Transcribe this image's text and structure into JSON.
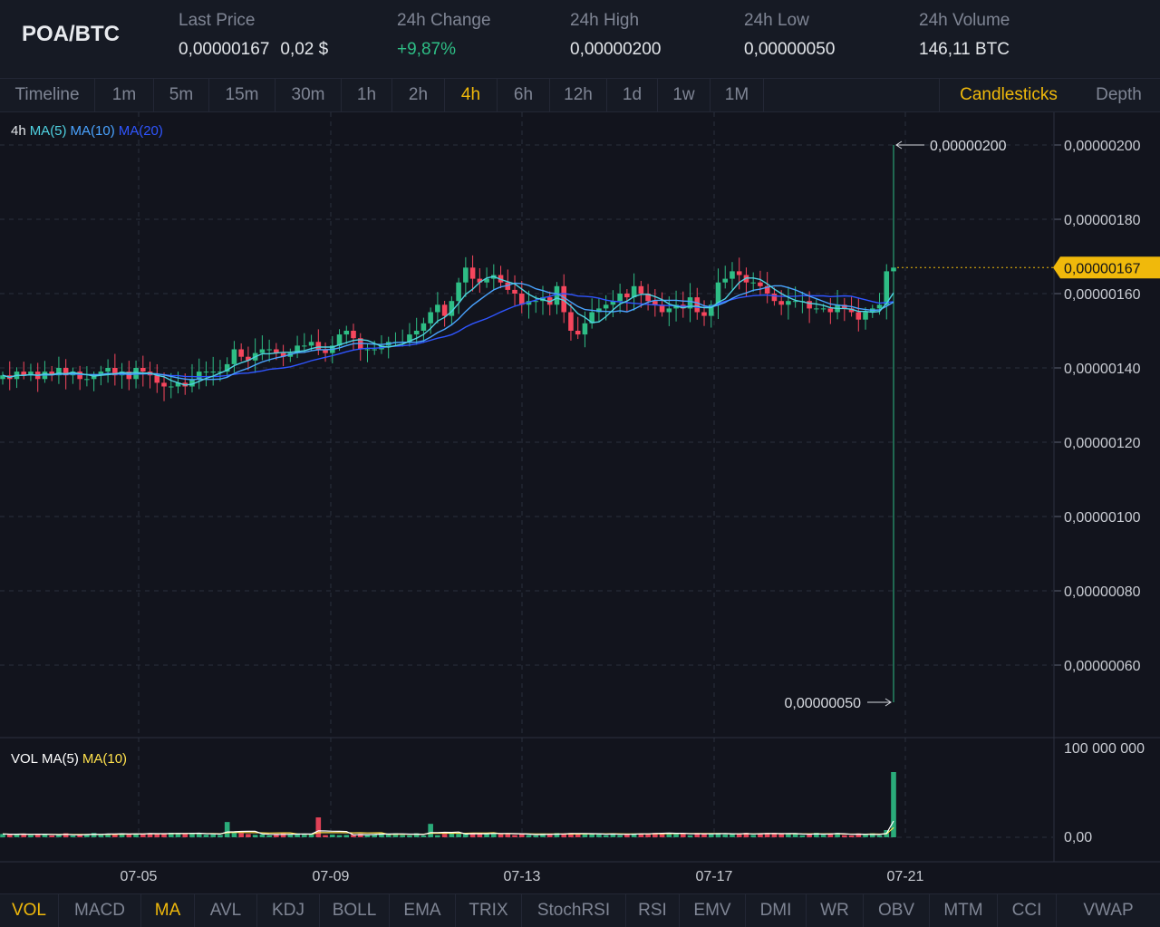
{
  "header": {
    "pair": "POA/BTC",
    "stats": [
      {
        "label": "Last Price",
        "value": "0,00000167",
        "sub": "0,02 $"
      },
      {
        "label": "24h Change",
        "value": "+9,87%"
      },
      {
        "label": "24h High",
        "value": "0,00000200"
      },
      {
        "label": "24h Low",
        "value": "0,00000050"
      },
      {
        "label": "24h Volume",
        "value": "146,11 BTC"
      }
    ]
  },
  "intervals": [
    "Timeline",
    "1m",
    "5m",
    "15m",
    "30m",
    "1h",
    "2h",
    "4h",
    "6h",
    "12h",
    "1d",
    "1w",
    "1M"
  ],
  "active_interval": "4h",
  "view_tabs": [
    "Candlesticks",
    "Depth"
  ],
  "active_view": "Candlesticks",
  "main_legend": {
    "interval": "4h",
    "ma5": "MA(5)",
    "ma10": "MA(10)",
    "ma20": "MA(20)"
  },
  "vol_legend": {
    "vol": "VOL",
    "ma5": "MA(5)",
    "ma10": "MA(10)"
  },
  "indicators": [
    "VOL",
    "MACD",
    "MA",
    "AVL",
    "KDJ",
    "BOLL",
    "EMA",
    "TRIX",
    "StochRSI",
    "RSI",
    "EMV",
    "DMI",
    "WR",
    "OBV",
    "MTM",
    "CCI",
    "VWAP"
  ],
  "active_indicators": [
    "VOL",
    "MA"
  ],
  "colors": {
    "up": "#2ebd85",
    "down": "#f6465d",
    "ma5": "#4fd1e1",
    "ma10": "#4aa3ff",
    "ma20": "#2f55ff",
    "accent": "#f0b90b",
    "vol_ma5": "#ffffff",
    "vol_ma10": "#ffe14d"
  },
  "chart_data": {
    "type": "candlestick",
    "price_axis": {
      "ticks": [
        "0,00000200",
        "0,00000180",
        "0,00000160",
        "0,00000140",
        "0,00000120",
        "0,00000100",
        "0,00000080",
        "0,00000060"
      ],
      "ylim": [
        4.2e-07,
        2.09e-06
      ],
      "current_price_label": "0,00000167"
    },
    "high_marker": "0,00000200",
    "low_marker": "0,00000050",
    "x_ticks": [
      "07-05",
      "07-09",
      "07-13",
      "07-17",
      "07-21"
    ],
    "volume_axis": {
      "ticks": [
        "100 000 000",
        "0,00"
      ],
      "max": 100000000
    },
    "series": [
      {
        "name": "Price",
        "values": [
          138,
          137,
          139,
          138,
          139,
          137,
          139,
          138,
          140,
          138,
          139,
          137,
          137,
          138,
          139,
          140,
          138,
          139,
          137,
          140,
          139,
          138,
          136,
          135,
          135,
          136,
          135,
          137,
          139,
          139,
          139,
          139,
          141,
          145,
          143,
          142,
          144,
          145,
          145,
          144,
          143,
          144,
          146,
          146,
          147,
          145,
          144,
          146,
          149,
          150,
          148,
          145,
          145,
          145,
          146,
          147,
          147,
          147,
          149,
          150,
          152,
          155,
          157,
          154,
          158,
          163,
          167,
          164,
          163,
          164,
          165,
          163,
          161,
          160,
          157,
          158,
          158,
          159,
          157,
          162,
          155,
          150,
          149,
          152,
          155,
          156,
          157,
          158,
          160,
          159,
          162,
          160,
          158,
          157,
          155,
          156,
          157,
          156,
          159,
          155,
          154,
          157,
          163,
          164,
          166,
          165,
          163,
          163,
          162,
          160,
          158,
          157,
          158,
          158,
          158,
          156,
          156,
          156,
          155,
          157,
          156,
          155,
          153,
          155,
          156,
          157,
          166,
          167
        ]
      }
    ],
    "high": "0,00000200",
    "low": "0,00000050"
  }
}
